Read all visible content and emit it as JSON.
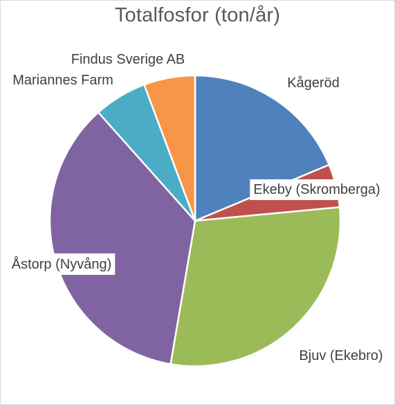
{
  "chart_data": {
    "type": "pie",
    "title": "Totalfosfor (ton/år)",
    "categories": [
      "Kågeröd",
      "Ekeby (Skromberga)",
      "Bjuv (Ekebro)",
      "Åstorp (Nyvång)",
      "Mariannes Farm",
      "Findus Sverige AB"
    ],
    "values": [
      18.7,
      4.8,
      29.2,
      35.7,
      5.9,
      5.7
    ],
    "colors": [
      "#4f81bd",
      "#c0504d",
      "#9bbb59",
      "#8064a2",
      "#4bacc6",
      "#f79646"
    ],
    "legend": "none",
    "label_placement": "outside"
  }
}
